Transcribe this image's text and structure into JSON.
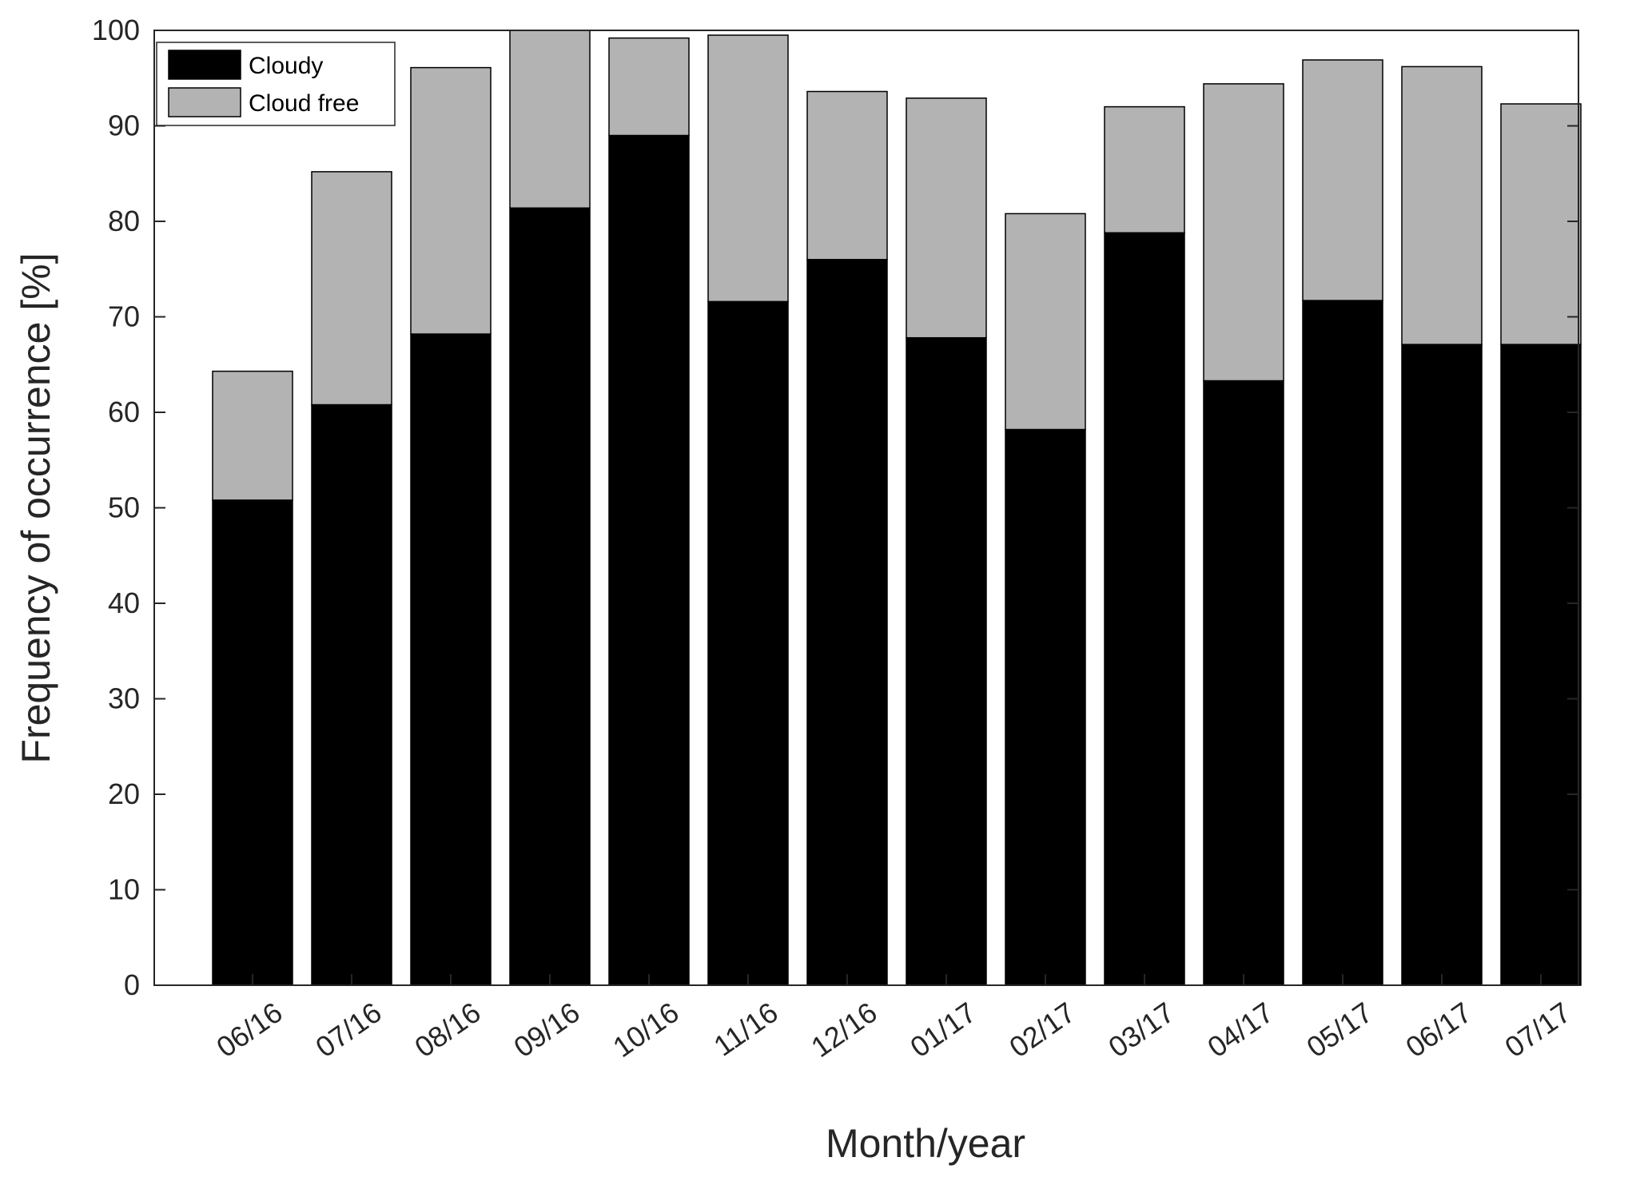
{
  "chart_data": {
    "type": "bar",
    "stacked": true,
    "title": "",
    "xlabel": "Month/year",
    "ylabel": "Frequency of occurrence [%]",
    "ylim": [
      0,
      100
    ],
    "yticks": [
      "0",
      "10",
      "20",
      "30",
      "40",
      "50",
      "60",
      "70",
      "80",
      "90",
      "100"
    ],
    "grid": false,
    "legend_position": "top-left",
    "categories": [
      "06/16",
      "07/16",
      "08/16",
      "09/16",
      "10/16",
      "11/16",
      "12/16",
      "01/17",
      "02/17",
      "03/17",
      "04/17",
      "05/17",
      "06/17",
      "07/17"
    ],
    "series": [
      {
        "name": "Cloudy",
        "color": "#000000",
        "values": [
          50.8,
          60.8,
          68.2,
          81.4,
          89.0,
          71.6,
          76.0,
          67.8,
          58.2,
          78.8,
          63.3,
          71.7,
          67.1,
          67.1
        ]
      },
      {
        "name": "Cloud free",
        "color": "#b3b3b3",
        "values": [
          13.5,
          24.4,
          27.9,
          18.6,
          10.2,
          27.9,
          17.6,
          25.1,
          22.6,
          13.2,
          31.1,
          25.2,
          29.1,
          25.2
        ]
      }
    ]
  }
}
